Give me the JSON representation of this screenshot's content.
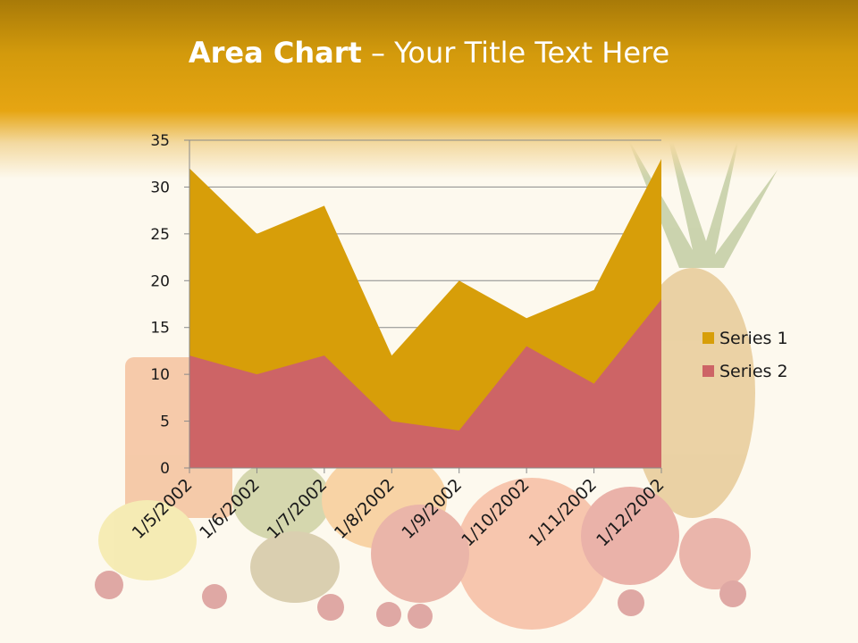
{
  "slide": {
    "title_bold": "Area Chart",
    "title_rest": " – Your Title Text Here"
  },
  "colors": {
    "series1": "#d79e09",
    "series2": "#cd6466",
    "gridline": "#8a8a8a",
    "axis": "#8a8a8a"
  },
  "chart_data": {
    "type": "area",
    "title": "",
    "xlabel": "",
    "ylabel": "",
    "categories": [
      "1/5/2002",
      "1/6/2002",
      "1/7/2002",
      "1/8/2002",
      "1/9/2002",
      "1/10/2002",
      "1/11/2002",
      "1/12/2002"
    ],
    "series": [
      {
        "name": "Series 1",
        "values": [
          32,
          25,
          28,
          12,
          20,
          16,
          19,
          33
        ]
      },
      {
        "name": "Series 2",
        "values": [
          12,
          10,
          12,
          5,
          4,
          13,
          9,
          18
        ]
      }
    ],
    "ylim": [
      0,
      35
    ],
    "yticks": [
      0,
      5,
      10,
      15,
      20,
      25,
      30,
      35
    ],
    "grid": true,
    "legend": "right"
  }
}
